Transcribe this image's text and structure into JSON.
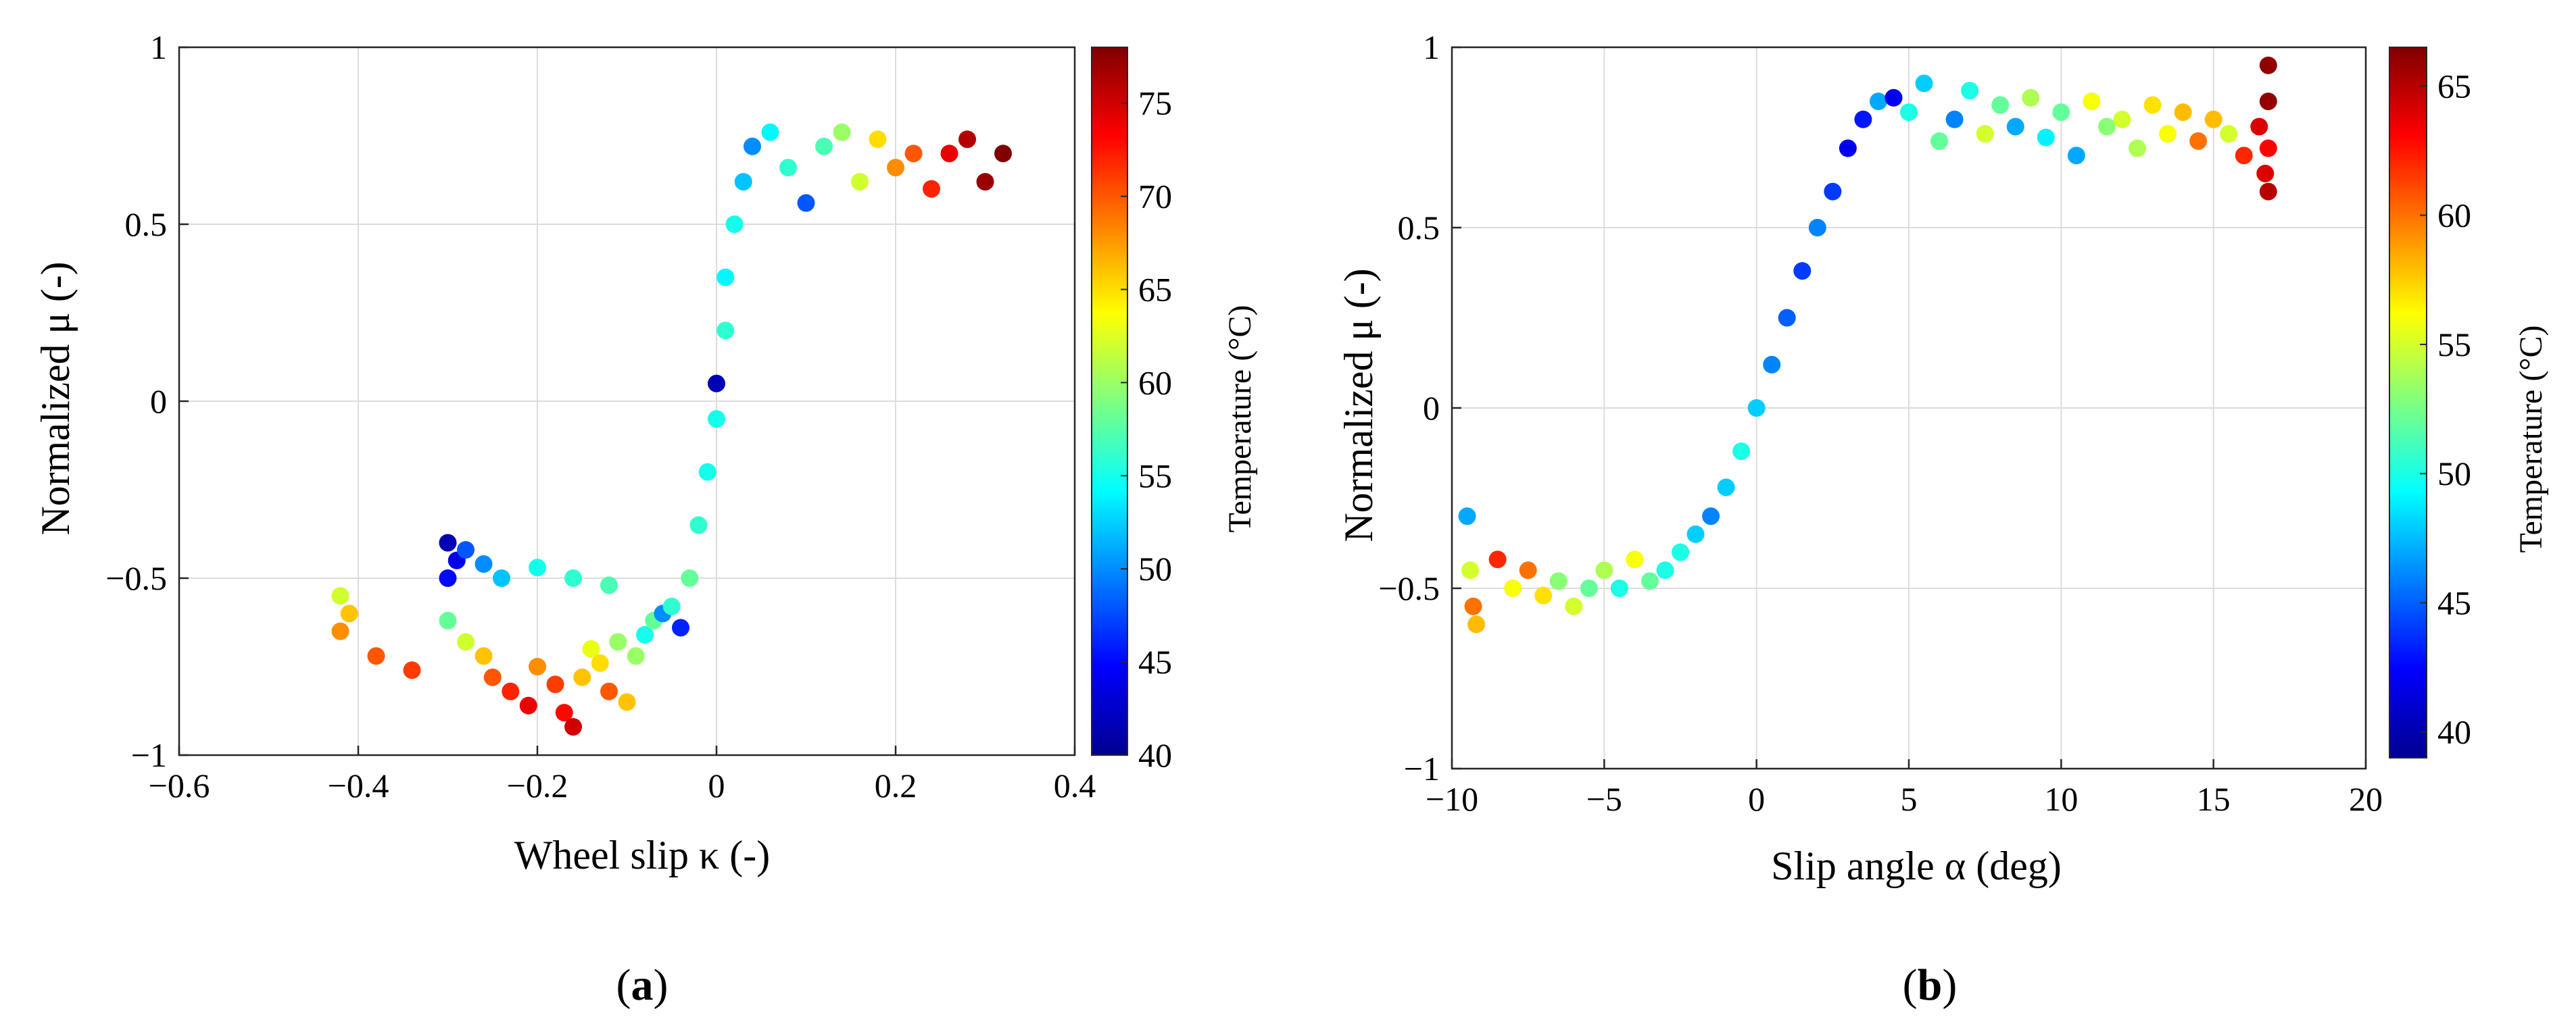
{
  "figure": {
    "panels": [
      {
        "open": "(",
        "letter": "a",
        "close": ")"
      },
      {
        "open": "(",
        "letter": "b",
        "close": ")"
      }
    ]
  },
  "chart_data": [
    {
      "type": "scatter",
      "panel": "a",
      "xlabel": "Wheel slip κ (-)",
      "ylabel": "Normalized μ (-)",
      "xlim": [
        -0.6,
        0.4
      ],
      "ylim": [
        -1,
        1
      ],
      "xticks": [
        -0.6,
        -0.4,
        -0.2,
        0,
        0.2,
        0.4
      ],
      "xtick_labels": [
        "−0.6",
        "−0.4",
        "−0.2",
        "0",
        "0.2",
        "0.4"
      ],
      "yticks": [
        -1,
        -0.5,
        0,
        0.5,
        1
      ],
      "ytick_labels": [
        "−1",
        "−0.5",
        "0",
        "0.5",
        "1"
      ],
      "grid": true,
      "colorbar": {
        "label": "Temperature (°C)",
        "range": [
          40,
          78
        ],
        "ticks": [
          40,
          45,
          50,
          55,
          60,
          65,
          70,
          75
        ],
        "tick_labels": [
          "40",
          "45",
          "50",
          "55",
          "60",
          "65",
          "70",
          "75"
        ],
        "colormap": "jet"
      },
      "points": [
        [
          -0.42,
          -0.55,
          62
        ],
        [
          -0.41,
          -0.6,
          66
        ],
        [
          -0.42,
          -0.65,
          68
        ],
        [
          -0.38,
          -0.72,
          70
        ],
        [
          -0.34,
          -0.76,
          71
        ],
        [
          -0.3,
          -0.4,
          42
        ],
        [
          -0.29,
          -0.45,
          44
        ],
        [
          -0.3,
          -0.5,
          45
        ],
        [
          -0.28,
          -0.42,
          48
        ],
        [
          -0.26,
          -0.46,
          50
        ],
        [
          -0.24,
          -0.5,
          52
        ],
        [
          -0.2,
          -0.47,
          55
        ],
        [
          -0.16,
          -0.5,
          56
        ],
        [
          -0.12,
          -0.52,
          57
        ],
        [
          -0.3,
          -0.62,
          58
        ],
        [
          -0.28,
          -0.68,
          62
        ],
        [
          -0.26,
          -0.72,
          66
        ],
        [
          -0.25,
          -0.78,
          70
        ],
        [
          -0.23,
          -0.82,
          72
        ],
        [
          -0.21,
          -0.86,
          74
        ],
        [
          -0.2,
          -0.75,
          68
        ],
        [
          -0.18,
          -0.8,
          71
        ],
        [
          -0.17,
          -0.88,
          73
        ],
        [
          -0.16,
          -0.92,
          75
        ],
        [
          -0.15,
          -0.78,
          66
        ],
        [
          -0.14,
          -0.7,
          63
        ],
        [
          -0.13,
          -0.74,
          65
        ],
        [
          -0.12,
          -0.82,
          70
        ],
        [
          -0.11,
          -0.68,
          60
        ],
        [
          -0.1,
          -0.85,
          66
        ],
        [
          -0.09,
          -0.72,
          60
        ],
        [
          -0.08,
          -0.66,
          55
        ],
        [
          -0.07,
          -0.62,
          58
        ],
        [
          -0.06,
          -0.6,
          50
        ],
        [
          -0.05,
          -0.58,
          56
        ],
        [
          -0.04,
          -0.64,
          46
        ],
        [
          -0.03,
          -0.5,
          58
        ],
        [
          -0.02,
          -0.35,
          56
        ],
        [
          -0.01,
          -0.2,
          55
        ],
        [
          0.0,
          -0.05,
          55
        ],
        [
          0.0,
          0.05,
          42
        ],
        [
          0.01,
          0.2,
          56
        ],
        [
          0.01,
          0.35,
          54
        ],
        [
          0.02,
          0.5,
          55
        ],
        [
          0.03,
          0.62,
          52
        ],
        [
          0.04,
          0.72,
          50
        ],
        [
          0.06,
          0.76,
          54
        ],
        [
          0.08,
          0.66,
          56
        ],
        [
          0.1,
          0.56,
          48
        ],
        [
          0.12,
          0.72,
          57
        ],
        [
          0.14,
          0.76,
          60
        ],
        [
          0.16,
          0.62,
          62
        ],
        [
          0.18,
          0.74,
          65
        ],
        [
          0.2,
          0.66,
          68
        ],
        [
          0.22,
          0.7,
          70
        ],
        [
          0.24,
          0.6,
          72
        ],
        [
          0.26,
          0.7,
          74
        ],
        [
          0.28,
          0.74,
          76
        ],
        [
          0.3,
          0.62,
          77
        ],
        [
          0.32,
          0.7,
          78
        ]
      ]
    },
    {
      "type": "scatter",
      "panel": "b",
      "xlabel": "Slip angle α (deg)",
      "ylabel": "Normalized μ (-)",
      "xlim": [
        -10,
        20
      ],
      "ylim": [
        -1,
        1
      ],
      "xticks": [
        -10,
        -5,
        0,
        5,
        10,
        15,
        20
      ],
      "xtick_labels": [
        "−10",
        "−5",
        "0",
        "5",
        "10",
        "15",
        "20"
      ],
      "yticks": [
        -1,
        -0.5,
        0,
        0.5,
        1
      ],
      "ytick_labels": [
        "−1",
        "−0.5",
        "0",
        "0.5",
        "1"
      ],
      "grid": true,
      "colorbar": {
        "label": "Temperature (°C)",
        "range": [
          39,
          66.5
        ],
        "ticks": [
          40,
          45,
          50,
          55,
          60,
          65
        ],
        "tick_labels": [
          "40",
          "45",
          "50",
          "55",
          "60",
          "65"
        ],
        "colormap": "jet"
      },
      "points": [
        [
          -9.5,
          -0.3,
          47
        ],
        [
          -9.4,
          -0.45,
          55
        ],
        [
          -9.3,
          -0.55,
          60
        ],
        [
          -9.2,
          -0.6,
          58
        ],
        [
          -8.5,
          -0.42,
          62
        ],
        [
          -8,
          -0.5,
          56
        ],
        [
          -7.5,
          -0.45,
          60
        ],
        [
          -7,
          -0.52,
          57
        ],
        [
          -6.5,
          -0.48,
          53
        ],
        [
          -6,
          -0.55,
          55
        ],
        [
          -5.5,
          -0.5,
          52
        ],
        [
          -5,
          -0.45,
          54
        ],
        [
          -4.5,
          -0.5,
          50
        ],
        [
          -4,
          -0.42,
          56
        ],
        [
          -3.5,
          -0.48,
          52
        ],
        [
          -3,
          -0.45,
          50
        ],
        [
          -2.5,
          -0.4,
          50
        ],
        [
          -2,
          -0.35,
          48
        ],
        [
          -1.5,
          -0.3,
          46
        ],
        [
          -1,
          -0.22,
          48
        ],
        [
          -0.5,
          -0.12,
          50
        ],
        [
          0,
          0,
          48
        ],
        [
          0.5,
          0.12,
          46
        ],
        [
          1,
          0.25,
          45
        ],
        [
          1.5,
          0.38,
          44
        ],
        [
          2,
          0.5,
          46
        ],
        [
          2.5,
          0.6,
          44
        ],
        [
          3,
          0.72,
          42
        ],
        [
          3.5,
          0.8,
          43
        ],
        [
          4,
          0.85,
          47
        ],
        [
          4.5,
          0.86,
          42
        ],
        [
          5,
          0.82,
          50
        ],
        [
          5.5,
          0.9,
          48
        ],
        [
          6,
          0.74,
          52
        ],
        [
          6.5,
          0.8,
          46
        ],
        [
          7,
          0.88,
          50
        ],
        [
          7.5,
          0.76,
          55
        ],
        [
          8,
          0.84,
          52
        ],
        [
          8.5,
          0.78,
          47
        ],
        [
          9,
          0.86,
          54
        ],
        [
          9.5,
          0.75,
          49
        ],
        [
          10,
          0.82,
          52
        ],
        [
          10.5,
          0.7,
          47
        ],
        [
          11,
          0.85,
          56
        ],
        [
          11.5,
          0.78,
          53
        ],
        [
          12,
          0.8,
          55
        ],
        [
          12.5,
          0.72,
          54
        ],
        [
          13,
          0.84,
          57
        ],
        [
          13.5,
          0.76,
          56
        ],
        [
          14,
          0.82,
          58
        ],
        [
          14.5,
          0.74,
          60
        ],
        [
          15,
          0.8,
          58
        ],
        [
          15.5,
          0.76,
          55
        ],
        [
          16,
          0.7,
          62
        ],
        [
          16.5,
          0.78,
          64
        ],
        [
          16.8,
          0.6,
          65
        ],
        [
          16.8,
          0.85,
          66
        ],
        [
          16.8,
          0.72,
          63
        ],
        [
          16.8,
          0.95,
          66
        ],
        [
          16.7,
          0.65,
          64
        ]
      ]
    }
  ]
}
